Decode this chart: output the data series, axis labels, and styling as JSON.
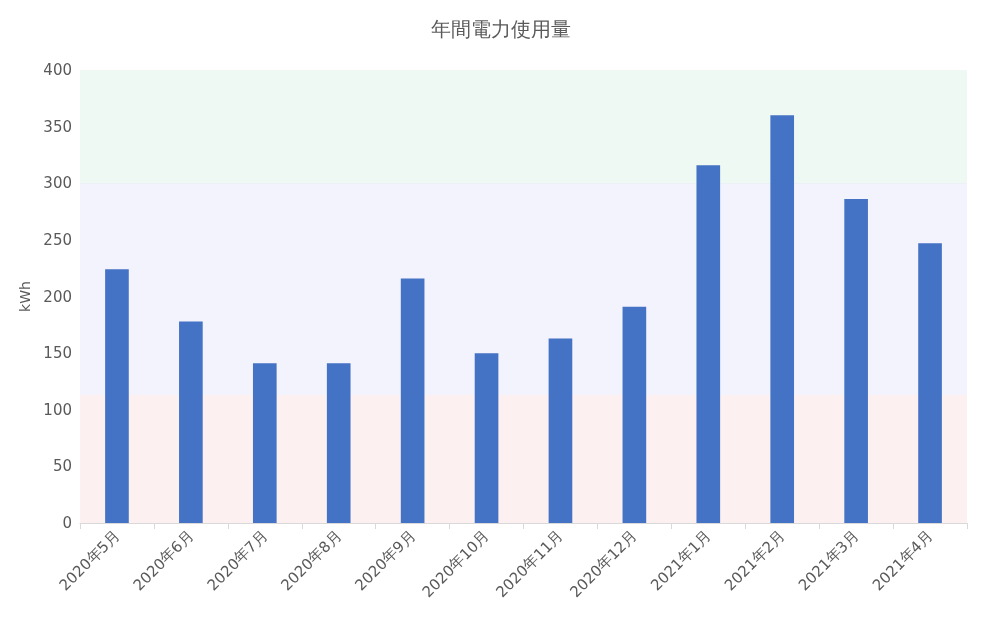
{
  "chart_data": {
    "type": "bar",
    "title": "年間電力使用量",
    "ylabel": "kWh",
    "categories": [
      "2020年5月",
      "2020年6月",
      "2020年7月",
      "2020年8月",
      "2020年9月",
      "2020年10月",
      "2020年11月",
      "2020年12月",
      "2021年1月",
      "2021年2月",
      "2021年3月",
      "2021年4月"
    ],
    "values": [
      224,
      178,
      141,
      141,
      216,
      150,
      163,
      191,
      316,
      360,
      286,
      247
    ],
    "color": "#4472c4",
    "ylim": [
      0,
      400
    ],
    "yticks": [
      0,
      50,
      100,
      150,
      200,
      250,
      300,
      350,
      400
    ],
    "grid": "y",
    "bands": [
      {
        "axis": "y",
        "from": 0,
        "to": 113,
        "color": "#fdf0f0"
      },
      {
        "axis": "y",
        "from": 113,
        "to": 300,
        "color": "#f3f3fd"
      },
      {
        "axis": "y",
        "from": 300,
        "to": 400,
        "color": "#eff9f4"
      }
    ]
  }
}
